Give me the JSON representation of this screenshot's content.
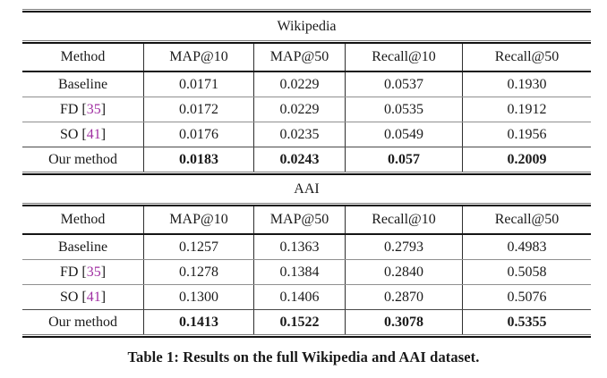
{
  "page": {
    "background": "#ffffff",
    "text_color": "#1a1a1a",
    "citation_color": "#a02fa2",
    "caption": "Table 1: Results on the full Wikipedia and AAI dataset."
  },
  "tables": [
    {
      "title": "Wikipedia",
      "columns": [
        "Method",
        "MAP@10",
        "MAP@50",
        "Recall@10",
        "Recall@50"
      ],
      "rows": [
        {
          "label_pre": "Baseline",
          "cite": "",
          "label_post": "",
          "bold": false,
          "values": [
            "0.0171",
            "0.0229",
            "0.0537",
            "0.1930"
          ]
        },
        {
          "label_pre": "FD [",
          "cite": "35",
          "label_post": "]",
          "bold": false,
          "values": [
            "0.0172",
            "0.0229",
            "0.0535",
            "0.1912"
          ]
        },
        {
          "label_pre": "SO [",
          "cite": "41",
          "label_post": "]",
          "bold": false,
          "values": [
            "0.0176",
            "0.0235",
            "0.0549",
            "0.1956"
          ]
        },
        {
          "label_pre": "Our method",
          "cite": "",
          "label_post": "",
          "bold": true,
          "values": [
            "0.0183",
            "0.0243",
            "0.057",
            "0.2009"
          ]
        }
      ]
    },
    {
      "title": "AAI",
      "columns": [
        "Method",
        "MAP@10",
        "MAP@50",
        "Recall@10",
        "Recall@50"
      ],
      "rows": [
        {
          "label_pre": "Baseline",
          "cite": "",
          "label_post": "",
          "bold": false,
          "values": [
            "0.1257",
            "0.1363",
            "0.2793",
            "0.4983"
          ]
        },
        {
          "label_pre": "FD [",
          "cite": "35",
          "label_post": "]",
          "bold": false,
          "values": [
            "0.1278",
            "0.1384",
            "0.2840",
            "0.5058"
          ]
        },
        {
          "label_pre": "SO [",
          "cite": "41",
          "label_post": "]",
          "bold": false,
          "values": [
            "0.1300",
            "0.1406",
            "0.2870",
            "0.5076"
          ]
        },
        {
          "label_pre": "Our method",
          "cite": "",
          "label_post": "",
          "bold": true,
          "values": [
            "0.1413",
            "0.1522",
            "0.3078",
            "0.5355"
          ]
        }
      ]
    }
  ]
}
